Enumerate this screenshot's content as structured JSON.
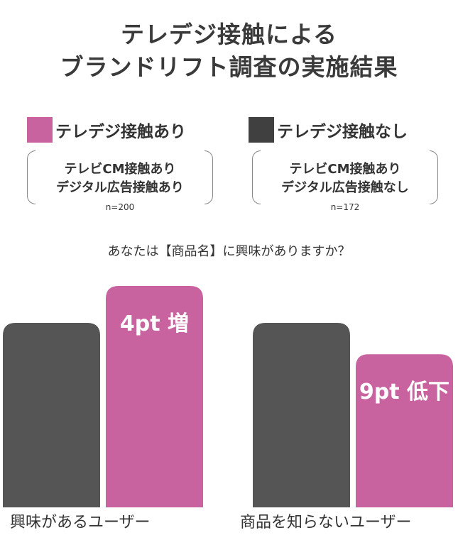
{
  "title": {
    "line1": "テレデジ接触による",
    "line2": "ブランドリフト調査の実施結果"
  },
  "legend": [
    {
      "label": "テレデジ接触あり",
      "color": "#c9639f"
    },
    {
      "label": "テレデジ接触なし",
      "color": "#404040"
    }
  ],
  "groups": [
    {
      "line1": "テレビCM接触あり",
      "line2": "デジタル広告接触あり",
      "n": "n=200"
    },
    {
      "line1": "テレビCM接触あり",
      "line2": "デジタル広告接触なし",
      "n": "n=172"
    }
  ],
  "question": "あなたは【商品名】に興味がありますか？",
  "chart_data": {
    "type": "bar",
    "categories": [
      "興味があるユーザー",
      "商品を知らないユーザー"
    ],
    "series": [
      {
        "name": "テレデジ接触なし",
        "color": "#555555",
        "values": [
          1.0,
          1.0
        ]
      },
      {
        "name": "テレデジ接触あり",
        "color": "#c9639f",
        "values": [
          1.2,
          0.83
        ]
      }
    ],
    "annotations": [
      "4pt 増",
      "9pt 低下"
    ],
    "grid": false,
    "legend_position": "top"
  }
}
